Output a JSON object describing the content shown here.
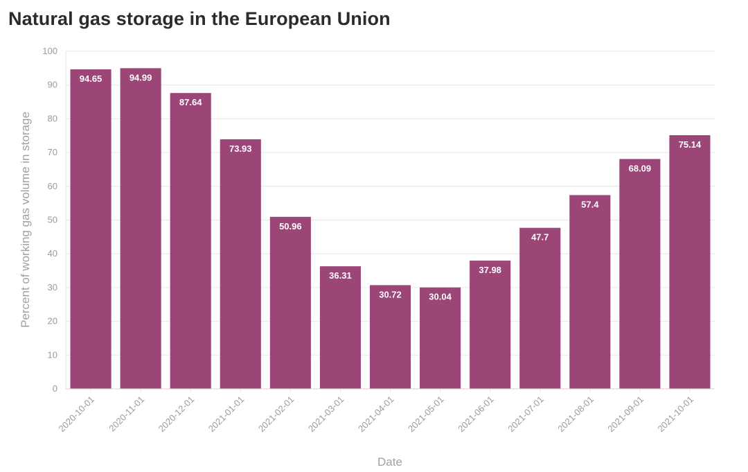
{
  "title": "Natural gas storage in the European Union",
  "colors": {
    "bar": "#9b4677",
    "grid": "#e6e6e6",
    "axis_text": "#9a9a9a",
    "title_text": "#2b2b2b"
  },
  "chart_data": {
    "type": "bar",
    "title": "Natural gas storage in the European Union",
    "xlabel": "Date",
    "ylabel": "Percent of working gas volume in storage",
    "categories": [
      "2020-10-01",
      "2020-11-01",
      "2020-12-01",
      "2021-01-01",
      "2021-02-01",
      "2021-03-01",
      "2021-04-01",
      "2021-05-01",
      "2021-06-01",
      "2021-07-01",
      "2021-08-01",
      "2021-09-01",
      "2021-10-01"
    ],
    "values": [
      94.65,
      94.99,
      87.64,
      73.93,
      50.96,
      36.31,
      30.72,
      30.04,
      37.98,
      47.7,
      57.4,
      68.09,
      75.14
    ],
    "value_labels": [
      "94.65",
      "94.99",
      "87.64",
      "73.93",
      "50.96",
      "36.31",
      "30.72",
      "30.04",
      "37.98",
      "47.7",
      "57.4",
      "68.09",
      "75.14"
    ],
    "ylim": [
      0,
      100
    ],
    "yticks": [
      0,
      10,
      20,
      30,
      40,
      50,
      60,
      70,
      80,
      90,
      100
    ],
    "ytick_labels": [
      "0",
      "10",
      "20",
      "30",
      "40",
      "50",
      "60",
      "70",
      "80",
      "90",
      "100"
    ],
    "grid": true,
    "legend": false
  }
}
